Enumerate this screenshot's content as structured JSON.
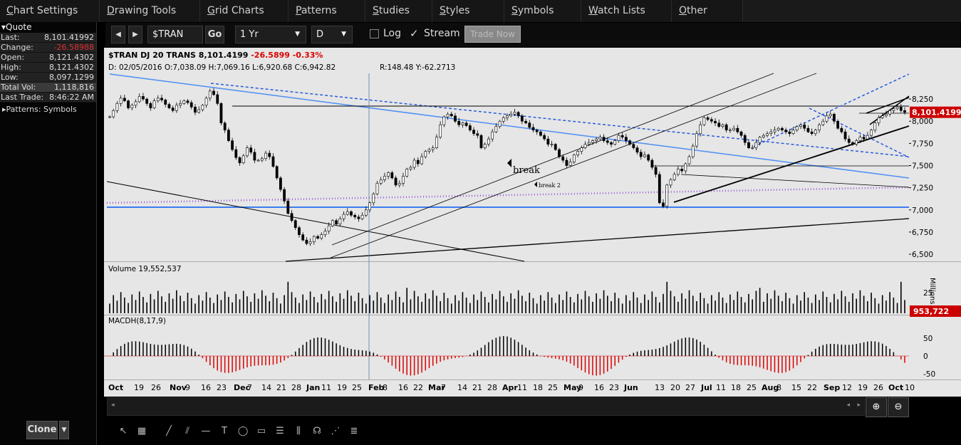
{
  "menu": [
    "Chart Settings",
    "Drawing Tools",
    "Grid Charts",
    "Patterns",
    "Studies",
    "Styles",
    "Symbols",
    "Watch Lists",
    "Other"
  ],
  "quote": {
    "header": "Quote",
    "rows": [
      {
        "k": "Last:",
        "v": "8,101.41992",
        "cls": ""
      },
      {
        "k": "Change:",
        "v": "-26.58988",
        "cls": "red"
      },
      {
        "k": "Open:",
        "v": "8,121.4302",
        "cls": ""
      },
      {
        "k": "High:",
        "v": "8,121.4302",
        "cls": ""
      },
      {
        "k": "Low:",
        "v": "8,097.1299",
        "cls": ""
      },
      {
        "k": "Total Vol:",
        "v": "1,118,816",
        "cls": "hl"
      },
      {
        "k": "Last Trade:",
        "v": "8:46:22 AM",
        "cls": ""
      }
    ],
    "patterns": "Patterns: Symbols"
  },
  "toolbar": {
    "symbol": "$TRAN",
    "go": "Go",
    "range": "1 Yr",
    "interval": "D",
    "log": "Log",
    "stream": "Stream",
    "trade_now": "Trade Now"
  },
  "clone": "Clone",
  "chart_data": {
    "type": "candlestick",
    "symbol": "$TRAN",
    "name": "DJ 20 TRANS",
    "last": "8,101.4199",
    "change": "-26.5899",
    "change_pct": "-0.33%",
    "info": "D: 02/05/2016 O:7,038.09 H:7,069.16 L:6,920.68 C:6,942.82",
    "ruler": "R:148.48 Y:-62.2713",
    "last_tag": "8,101.41992",
    "y_ticks": [
      "8,250",
      "8,000",
      "7,750",
      "7,500",
      "7,250",
      "7,000",
      "6,750",
      "6,500"
    ],
    "y_tick_values": [
      8250,
      8000,
      7750,
      7500,
      7250,
      7000,
      6750,
      6500
    ],
    "ylim": [
      6420,
      8540
    ],
    "close_path": [
      8050,
      8120,
      8200,
      8260,
      8230,
      8150,
      8180,
      8220,
      8280,
      8250,
      8200,
      8150,
      8230,
      8260,
      8240,
      8190,
      8150,
      8120,
      8180,
      8200,
      8230,
      8210,
      8160,
      8100,
      8130,
      8180,
      8260,
      8340,
      8300,
      8200,
      7980,
      7900,
      7780,
      7680,
      7590,
      7530,
      7610,
      7700,
      7650,
      7560,
      7560,
      7580,
      7640,
      7600,
      7490,
      7360,
      7230,
      7100,
      6960,
      6880,
      6800,
      6720,
      6660,
      6620,
      6640,
      6700,
      6680,
      6720,
      6760,
      6820,
      6880,
      6840,
      6900,
      6950,
      6980,
      6940,
      6920,
      6900,
      6940,
      7000,
      7080,
      7180,
      7300,
      7340,
      7380,
      7420,
      7360,
      7280,
      7300,
      7380,
      7460,
      7480,
      7560,
      7520,
      7600,
      7660,
      7680,
      7700,
      7820,
      7960,
      8050,
      8080,
      8060,
      8000,
      7960,
      7980,
      7950,
      7900,
      7860,
      7840,
      7700,
      7740,
      7800,
      7880,
      7940,
      8000,
      8040,
      8060,
      8080,
      8100,
      8060,
      8000,
      7980,
      7930,
      7900,
      7880,
      7840,
      7800,
      7740,
      7740,
      7680,
      7600,
      7560,
      7500,
      7540,
      7620,
      7660,
      7700,
      7740,
      7760,
      7780,
      7800,
      7820,
      7780,
      7760,
      7740,
      7780,
      7840,
      7820,
      7780,
      7740,
      7700,
      7650,
      7600,
      7620,
      7560,
      7480,
      7400,
      7080,
      7040,
      7280,
      7340,
      7400,
      7460,
      7440,
      7520,
      7600,
      7720,
      7860,
      7960,
      8040,
      8020,
      8000,
      7980,
      7940,
      7960,
      7900,
      7900,
      7920,
      7880,
      7840,
      7760,
      7700,
      7700,
      7760,
      7820,
      7840,
      7860,
      7880,
      7900,
      7920,
      7900,
      7880,
      7860,
      7900,
      7940,
      7960,
      7920,
      7880,
      7860,
      7900,
      7960,
      8000,
      8060,
      8080,
      8000,
      7920,
      7880,
      7800,
      7760,
      7740,
      7780,
      7820,
      7800,
      7840,
      7900,
      7980,
      8040,
      8060,
      8080,
      8120,
      8140,
      8160,
      8120,
      8100
    ],
    "volume_label": "Volume 19,552,537",
    "volume_axis": "Millions",
    "volume_tick": "25",
    "volume_tag": "953,722",
    "macd_label": "MACDH(8,17,9)",
    "macd_ticks": [
      "50",
      "0",
      "-50"
    ],
    "x_labels": [
      {
        "t": "Oct",
        "x": 0,
        "b": true
      },
      {
        "t": "19",
        "x": 36
      },
      {
        "t": "26",
        "x": 60
      },
      {
        "t": "Nov",
        "x": 86,
        "b": true
      },
      {
        "t": "9",
        "x": 108
      },
      {
        "t": "16",
        "x": 130
      },
      {
        "t": "23",
        "x": 152
      },
      {
        "t": "Dec",
        "x": 176,
        "b": true
      },
      {
        "t": "7",
        "x": 195
      },
      {
        "t": "14",
        "x": 215
      },
      {
        "t": "21",
        "x": 236
      },
      {
        "t": "28",
        "x": 257
      },
      {
        "t": "Jan",
        "x": 278,
        "b": true
      },
      {
        "t": "11",
        "x": 299
      },
      {
        "t": "19",
        "x": 321
      },
      {
        "t": "25",
        "x": 342
      },
      {
        "t": "Feb",
        "x": 365,
        "b": true
      },
      {
        "t": "8",
        "x": 385
      },
      {
        "t": "16",
        "x": 407
      },
      {
        "t": "22",
        "x": 428
      },
      {
        "t": "Mar",
        "x": 449,
        "b": true
      },
      {
        "t": "7",
        "x": 467
      },
      {
        "t": "14",
        "x": 490
      },
      {
        "t": "21",
        "x": 511
      },
      {
        "t": "28",
        "x": 532
      },
      {
        "t": "Apr",
        "x": 553,
        "b": true
      },
      {
        "t": "11",
        "x": 574
      },
      {
        "t": "18",
        "x": 596
      },
      {
        "t": "25",
        "x": 617
      },
      {
        "t": "May",
        "x": 639,
        "b": true
      },
      {
        "t": "9",
        "x": 660
      },
      {
        "t": "16",
        "x": 682
      },
      {
        "t": "23",
        "x": 703
      },
      {
        "t": "Jun",
        "x": 724,
        "b": true
      },
      {
        "t": "13",
        "x": 767
      },
      {
        "t": "20",
        "x": 789
      },
      {
        "t": "27",
        "x": 810
      },
      {
        "t": "Jul",
        "x": 832,
        "b": true
      },
      {
        "t": "11",
        "x": 853
      },
      {
        "t": "18",
        "x": 874
      },
      {
        "t": "25",
        "x": 896
      },
      {
        "t": "Aug",
        "x": 917,
        "b": true
      },
      {
        "t": "8",
        "x": 938
      },
      {
        "t": "15",
        "x": 959
      },
      {
        "t": "22",
        "x": 981
      },
      {
        "t": "Sep",
        "x": 1004,
        "b": true
      },
      {
        "t": "12",
        "x": 1030
      },
      {
        "t": "19",
        "x": 1052
      },
      {
        "t": "26",
        "x": 1074
      },
      {
        "t": "Oct",
        "x": 1095,
        "b": true
      },
      {
        "t": "10",
        "x": 1118
      }
    ],
    "annotations": [
      "break",
      "break 2"
    ]
  }
}
